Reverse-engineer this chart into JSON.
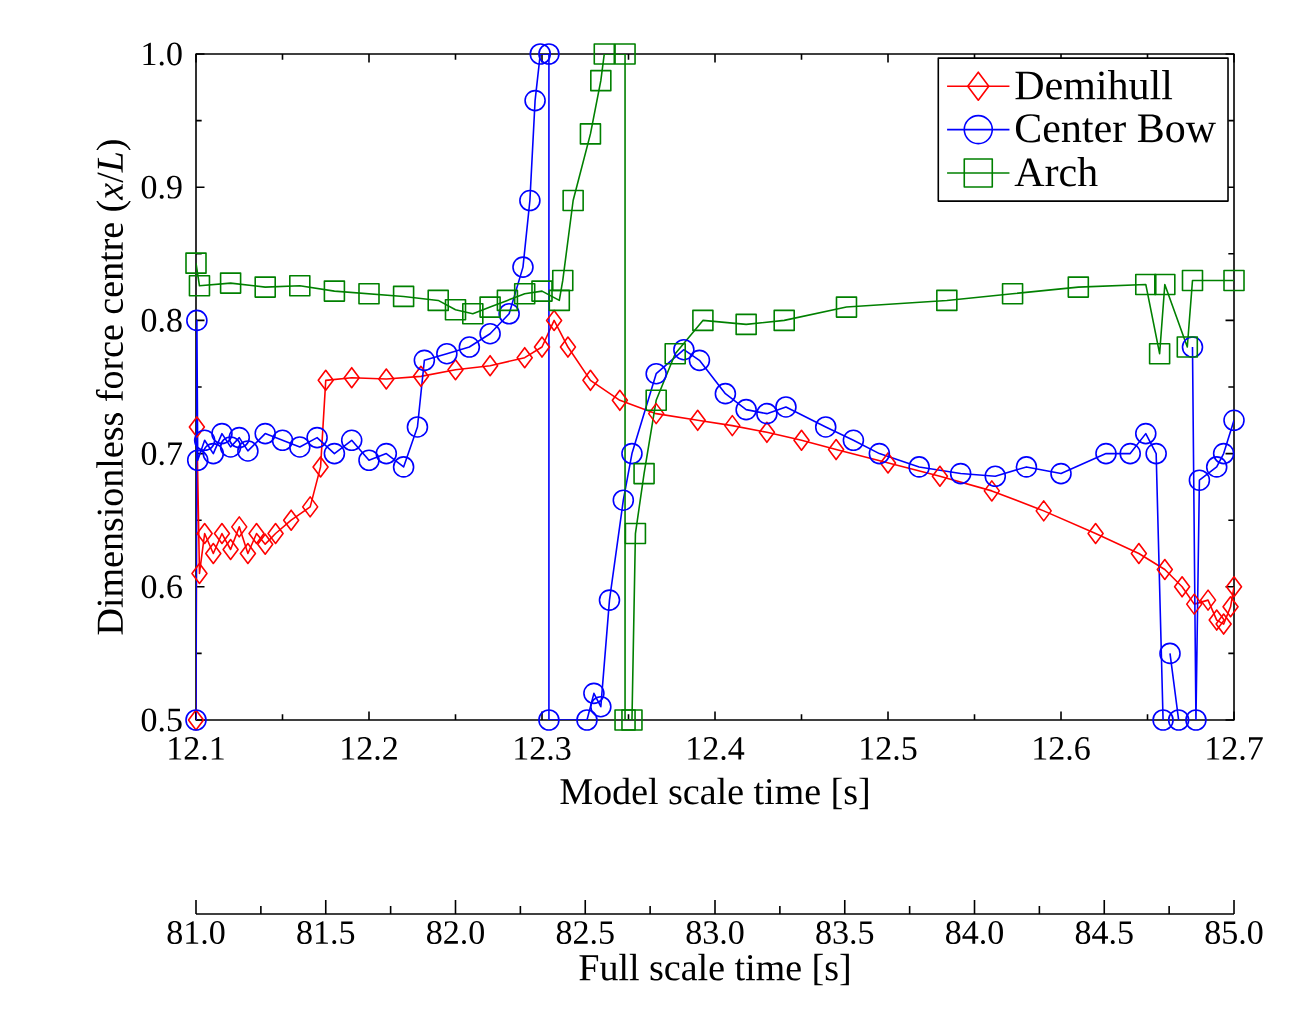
{
  "chart_data": {
    "type": "line",
    "xlabel": "Model scale time [s]",
    "ylabel": "Dimensionless force centre (*x*/*L*)",
    "x2label": "Full scale time [s]",
    "xlim": [
      12.1,
      12.7
    ],
    "xticks": [
      12.1,
      12.2,
      12.3,
      12.4,
      12.5,
      12.6,
      12.7
    ],
    "ylim": [
      0.5,
      1.0
    ],
    "yticks": [
      0.5,
      0.6,
      0.7,
      0.8,
      0.9,
      {
        "value": 1.0,
        "label": "1.0"
      }
    ],
    "x2lim": [
      81.0,
      85.0
    ],
    "x2ticks": [
      {
        "value": 81.0,
        "label": "81.0"
      },
      81.5,
      {
        "value": 82.0,
        "label": "82.0"
      },
      82.5,
      {
        "value": 83.0,
        "label": "83.0"
      },
      83.5,
      {
        "value": 84.0,
        "label": "84.0"
      },
      84.5,
      {
        "value": 85.0,
        "label": "85.0"
      }
    ],
    "legend": "top right",
    "grid": false,
    "series": [
      {
        "name": "Demihull",
        "color": "#ff0000",
        "marker": "diamond",
        "x": [
          12.1,
          12.1005,
          12.102,
          12.105,
          12.11,
          12.115,
          12.12,
          12.125,
          12.13,
          12.135,
          12.14,
          12.146,
          12.155,
          12.166,
          12.172,
          12.175,
          12.19,
          12.21,
          12.23,
          12.25,
          12.27,
          12.29,
          12.3,
          12.307,
          12.315,
          12.328,
          12.345,
          12.366,
          12.39,
          12.41,
          12.43,
          12.45,
          12.47,
          12.5,
          12.53,
          12.56,
          12.59,
          12.62,
          12.645,
          12.66,
          12.67,
          12.677,
          12.685,
          12.69,
          12.694,
          12.698,
          12.7
        ],
        "values": [
          0.5,
          0.72,
          0.61,
          0.64,
          0.625,
          0.64,
          0.628,
          0.645,
          0.625,
          0.64,
          0.632,
          0.64,
          0.65,
          0.66,
          0.69,
          0.755,
          0.757,
          0.756,
          0.758,
          0.763,
          0.766,
          0.772,
          0.78,
          0.8,
          0.78,
          0.755,
          0.74,
          0.73,
          0.725,
          0.721,
          0.716,
          0.71,
          0.703,
          0.693,
          0.683,
          0.672,
          0.657,
          0.64,
          0.625,
          0.613,
          0.6,
          0.587,
          0.59,
          0.575,
          0.572,
          0.585,
          0.6
        ]
      },
      {
        "name": "Center Bow",
        "color": "#0000ff",
        "marker": "circle",
        "x": [
          12.1,
          12.1005,
          12.101,
          12.105,
          12.11,
          12.115,
          12.12,
          12.125,
          12.13,
          12.14,
          12.15,
          12.16,
          12.17,
          12.18,
          12.19,
          12.2,
          12.21,
          12.22,
          12.228,
          12.232,
          12.245,
          12.258,
          12.27,
          12.281,
          12.289,
          12.293,
          12.296,
          12.299,
          12.304,
          12.304,
          12.326,
          12.33,
          12.334,
          12.339,
          12.347,
          12.352,
          12.366,
          12.382,
          12.391,
          12.406,
          12.418,
          12.43,
          12.441,
          12.464,
          12.48,
          12.495,
          12.518,
          12.542,
          12.562,
          12.58,
          12.6,
          12.626,
          12.64,
          12.649,
          12.655,
          12.659,
          12.661,
          12.663,
          12.668,
          12.672,
          12.676,
          12.678,
          12.68,
          12.69,
          12.694,
          12.7
        ],
        "values": [
          0.5,
          0.8,
          0.695,
          0.71,
          0.7,
          0.715,
          0.705,
          0.712,
          0.702,
          0.715,
          0.71,
          0.705,
          0.712,
          0.7,
          0.71,
          0.695,
          0.7,
          0.69,
          0.72,
          0.77,
          0.775,
          0.78,
          0.79,
          0.805,
          0.84,
          0.89,
          0.965,
          1.0,
          1.0,
          0.5,
          0.5,
          0.52,
          0.51,
          0.59,
          0.665,
          0.7,
          0.76,
          0.778,
          0.77,
          0.745,
          0.733,
          0.73,
          0.735,
          0.72,
          0.71,
          0.7,
          0.69,
          0.685,
          0.683,
          0.69,
          0.685,
          0.7,
          0.7,
          0.715,
          0.7,
          0.5,
          null,
          0.55,
          0.5,
          null,
          0.78,
          0.5,
          0.68,
          0.69,
          0.7,
          0.725
        ]
      },
      {
        "name": "Arch",
        "color": "#008000",
        "marker": "square",
        "x": [
          12.1,
          12.102,
          12.12,
          12.14,
          12.16,
          12.18,
          12.2,
          12.22,
          12.24,
          12.25,
          12.26,
          12.27,
          12.28,
          12.29,
          12.3,
          12.31,
          12.312,
          12.318,
          12.328,
          12.334,
          12.336,
          12.348,
          12.348,
          12.352,
          12.354,
          12.359,
          12.366,
          12.377,
          12.393,
          12.418,
          12.44,
          12.476,
          12.534,
          12.572,
          12.61,
          12.649,
          12.657,
          12.66,
          12.673,
          12.676,
          12.7
        ],
        "values": [
          0.843,
          0.826,
          0.828,
          0.825,
          0.826,
          0.822,
          0.82,
          0.818,
          0.815,
          0.808,
          0.805,
          0.81,
          0.815,
          0.82,
          0.822,
          0.815,
          0.83,
          0.89,
          0.94,
          0.98,
          1.0,
          1.0,
          0.5,
          0.5,
          0.64,
          0.685,
          0.74,
          0.775,
          0.8,
          0.797,
          0.8,
          0.81,
          0.815,
          0.82,
          0.825,
          0.827,
          0.775,
          0.827,
          0.78,
          0.83,
          0.83
        ]
      }
    ]
  }
}
